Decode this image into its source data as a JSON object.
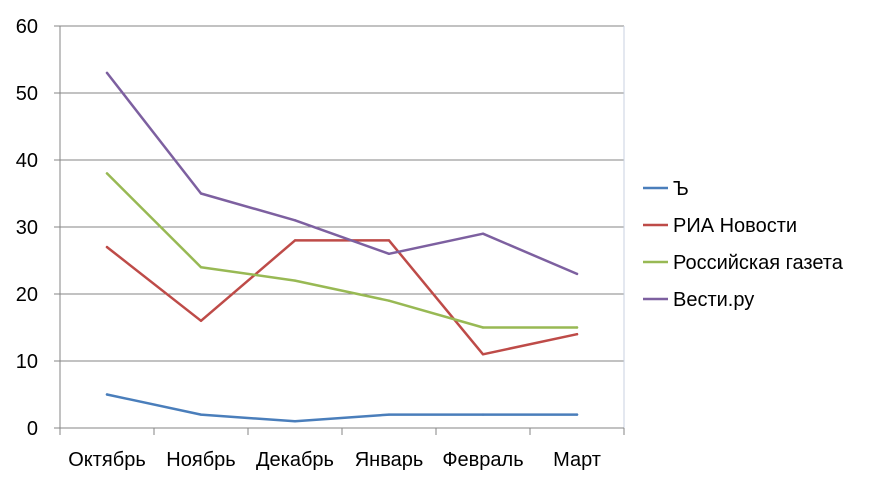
{
  "chart_data": {
    "type": "line",
    "categories": [
      "Октябрь",
      "Ноябрь",
      "Декабрь",
      "Январь",
      "Февраль",
      "Март"
    ],
    "ylim": [
      0,
      60
    ],
    "yticks": [
      0,
      10,
      20,
      30,
      40,
      50,
      60
    ],
    "grid": "horizontal",
    "legend_position": "right",
    "series": [
      {
        "name": "Ъ",
        "color": "#4A7EBB",
        "values": [
          5,
          2,
          1,
          2,
          2,
          2
        ]
      },
      {
        "name": "РИА Новости",
        "color": "#BE4B48",
        "values": [
          27,
          16,
          28,
          28,
          11,
          14
        ]
      },
      {
        "name": "Российская газета",
        "color": "#98B954",
        "values": [
          38,
          24,
          22,
          19,
          15,
          15
        ]
      },
      {
        "name": "Вести.ру",
        "color": "#7D60A0",
        "values": [
          53,
          35,
          31,
          26,
          29,
          23
        ]
      }
    ]
  }
}
